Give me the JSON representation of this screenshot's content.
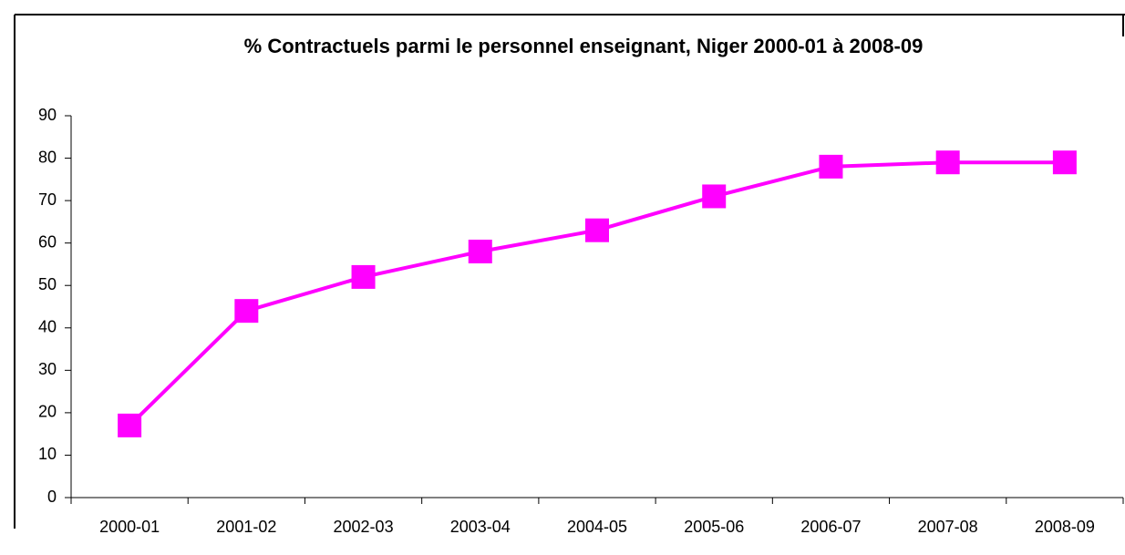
{
  "chart_data": {
    "type": "line",
    "title": "% Contractuels parmi le personnel enseignant, Niger 2000-01 à 2008-09",
    "categories": [
      "2000-01",
      "2001-02",
      "2002-03",
      "2003-04",
      "2004-05",
      "2005-06",
      "2006-07",
      "2007-08",
      "2008-09"
    ],
    "series": [
      {
        "name": "% Contractuels",
        "color": "#ff00ff",
        "values": [
          17,
          44,
          52,
          58,
          63,
          71,
          78,
          79,
          79
        ]
      }
    ],
    "ylim": [
      0,
      90
    ],
    "yticks": [
      0,
      10,
      20,
      30,
      40,
      50,
      60,
      70,
      80,
      90
    ],
    "grid": false
  }
}
